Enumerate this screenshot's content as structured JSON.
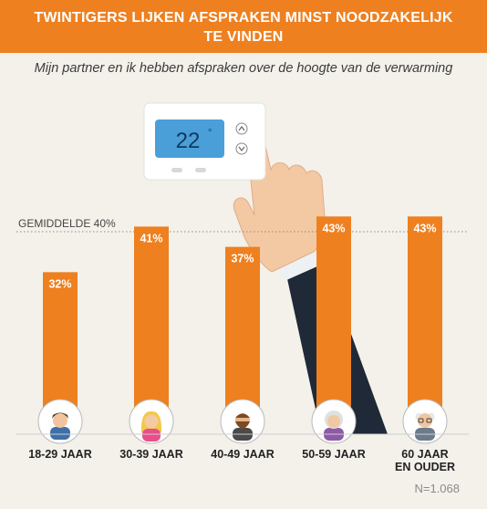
{
  "header": {
    "title_line1": "TWINTIGERS LIJKEN AFSPRAKEN MINST NOODZAKELIJK",
    "title_line2": "TE VINDEN"
  },
  "subtitle": "Mijn partner en ik hebben afspraken over de hoogte van de verwarming",
  "thermostat": {
    "display": "22",
    "degree": "°"
  },
  "footnote": "N=1.068",
  "colors": {
    "header": "#ee8020",
    "bar": "#ee8020",
    "background": "#f3f1ea"
  },
  "chart_data": {
    "type": "bar",
    "categories": [
      [
        "18-29 JAAR"
      ],
      [
        "30-39 JAAR"
      ],
      [
        "40-49 JAAR"
      ],
      [
        "50-59 JAAR"
      ],
      [
        "60 JAAR",
        "EN OUDER"
      ]
    ],
    "values": [
      32,
      41,
      37,
      43,
      43
    ],
    "value_labels": [
      "32%",
      "41%",
      "37%",
      "43%",
      "43%"
    ],
    "average": {
      "value": 40,
      "label": "GEMIDDELDE 40%"
    },
    "ylim": [
      0,
      49
    ],
    "grid": false,
    "avatars": [
      "young-man-icon",
      "young-woman-icon",
      "bearded-man-icon",
      "grey-haired-woman-icon",
      "elderly-man-icon"
    ]
  }
}
